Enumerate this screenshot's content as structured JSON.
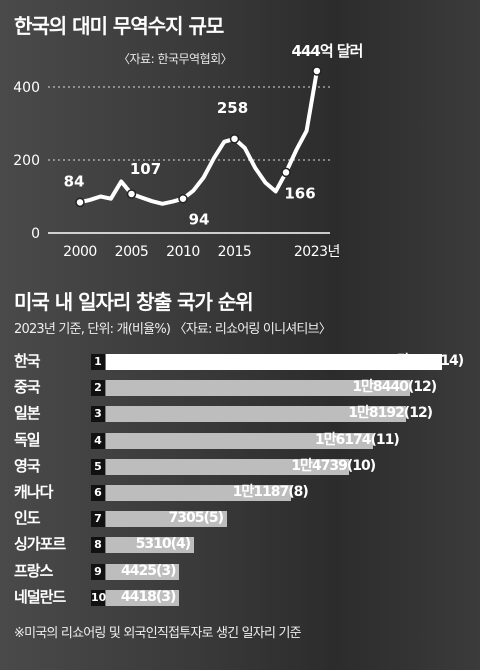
{
  "chart_data": [
    {
      "type": "line",
      "title": "한국의 대미 무역수지 규모",
      "subtitle": "〈자료: 한국무역협회〉",
      "end_label": "444억 달러",
      "x_ticks": [
        "2000",
        "2005",
        "2010",
        "2015",
        "2023년"
      ],
      "y_ticks": [
        "0",
        "200",
        "400"
      ],
      "ylim": [
        0,
        480
      ],
      "xlim": [
        1998,
        2024
      ],
      "series": [
        {
          "x": [
            2000,
            2001,
            2002,
            2003,
            2004,
            2005,
            2006,
            2007,
            2008,
            2009,
            2010,
            2011,
            2012,
            2013,
            2014,
            2015,
            2016,
            2017,
            2018,
            2019,
            2020,
            2021,
            2022,
            2023
          ],
          "y": [
            84,
            91,
            100,
            94,
            141,
            107,
            97,
            87,
            80,
            86,
            94,
            116,
            152,
            205,
            250,
            258,
            233,
            179,
            138,
            114,
            166,
            227,
            280,
            444
          ]
        }
      ],
      "labeled_points": [
        {
          "x": 2000,
          "y": 84,
          "label": "84"
        },
        {
          "x": 2005,
          "y": 107,
          "label": "107"
        },
        {
          "x": 2010,
          "y": 94,
          "label": "94"
        },
        {
          "x": 2015,
          "y": 258,
          "label": "258"
        },
        {
          "x": 2020,
          "y": 166,
          "label": "166"
        },
        {
          "x": 2023,
          "y": 444,
          "label": ""
        }
      ],
      "grid": "dotted horizontal"
    },
    {
      "type": "bar",
      "title": "미국 내 일자리 창출 국가 순위",
      "subtitle": "2023년 기준, 단위: 개(비율%) 〈자료: 리쇼어링 이니셔티브〉",
      "categories": [
        "한국",
        "중국",
        "일본",
        "독일",
        "영국",
        "캐나다",
        "인도",
        "싱가포르",
        "프랑스",
        "네덜란드"
      ],
      "ranks": [
        "1",
        "2",
        "3",
        "4",
        "5",
        "6",
        "7",
        "8",
        "9",
        "10"
      ],
      "values": [
        20360,
        18440,
        18192,
        16174,
        14739,
        11187,
        7305,
        5310,
        4425,
        4418
      ],
      "value_labels": [
        "2만360(14)",
        "1만8440(12)",
        "1만8192(12)",
        "1만6174(11)",
        "1만4739(10)",
        "1만1187(8)",
        "7305(5)",
        "5310(4)",
        "4425(3)",
        "4418(3)"
      ],
      "note": "※미국의 리쇼어링 및 외국인직접투자로 생긴 일자리 기준"
    }
  ]
}
